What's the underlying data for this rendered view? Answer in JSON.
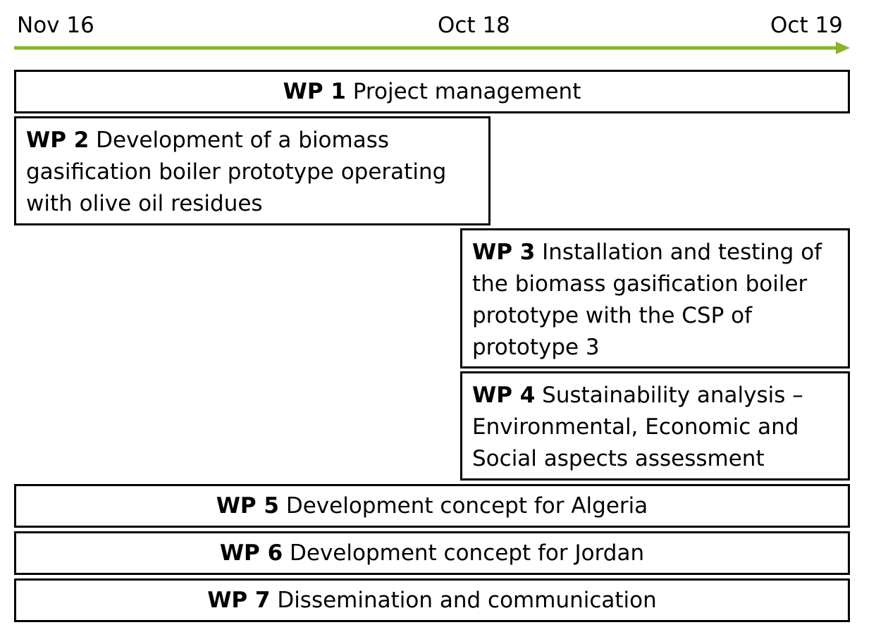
{
  "timeline": {
    "ticks": [
      "Nov 16",
      "Oct 18",
      "Oct 19"
    ],
    "arrow_color": "#8ab42a"
  },
  "work_packages": [
    {
      "id": "WP 1",
      "title": "Project management"
    },
    {
      "id": "WP 2",
      "title": "Development of a biomass gasification boiler prototype operating with olive oil residues"
    },
    {
      "id": "WP 3",
      "title": "Installation and testing of the biomass gasification boiler prototype with the CSP of prototype 3"
    },
    {
      "id": "WP 4",
      "title": "Sustainability analysis – Environmental, Economic and Social aspects assessment"
    },
    {
      "id": "WP 5",
      "title": "Development concept for Algeria"
    },
    {
      "id": "WP 6",
      "title": "Development concept for Jordan"
    },
    {
      "id": "WP 7",
      "title": "Dissemination and communication"
    }
  ]
}
